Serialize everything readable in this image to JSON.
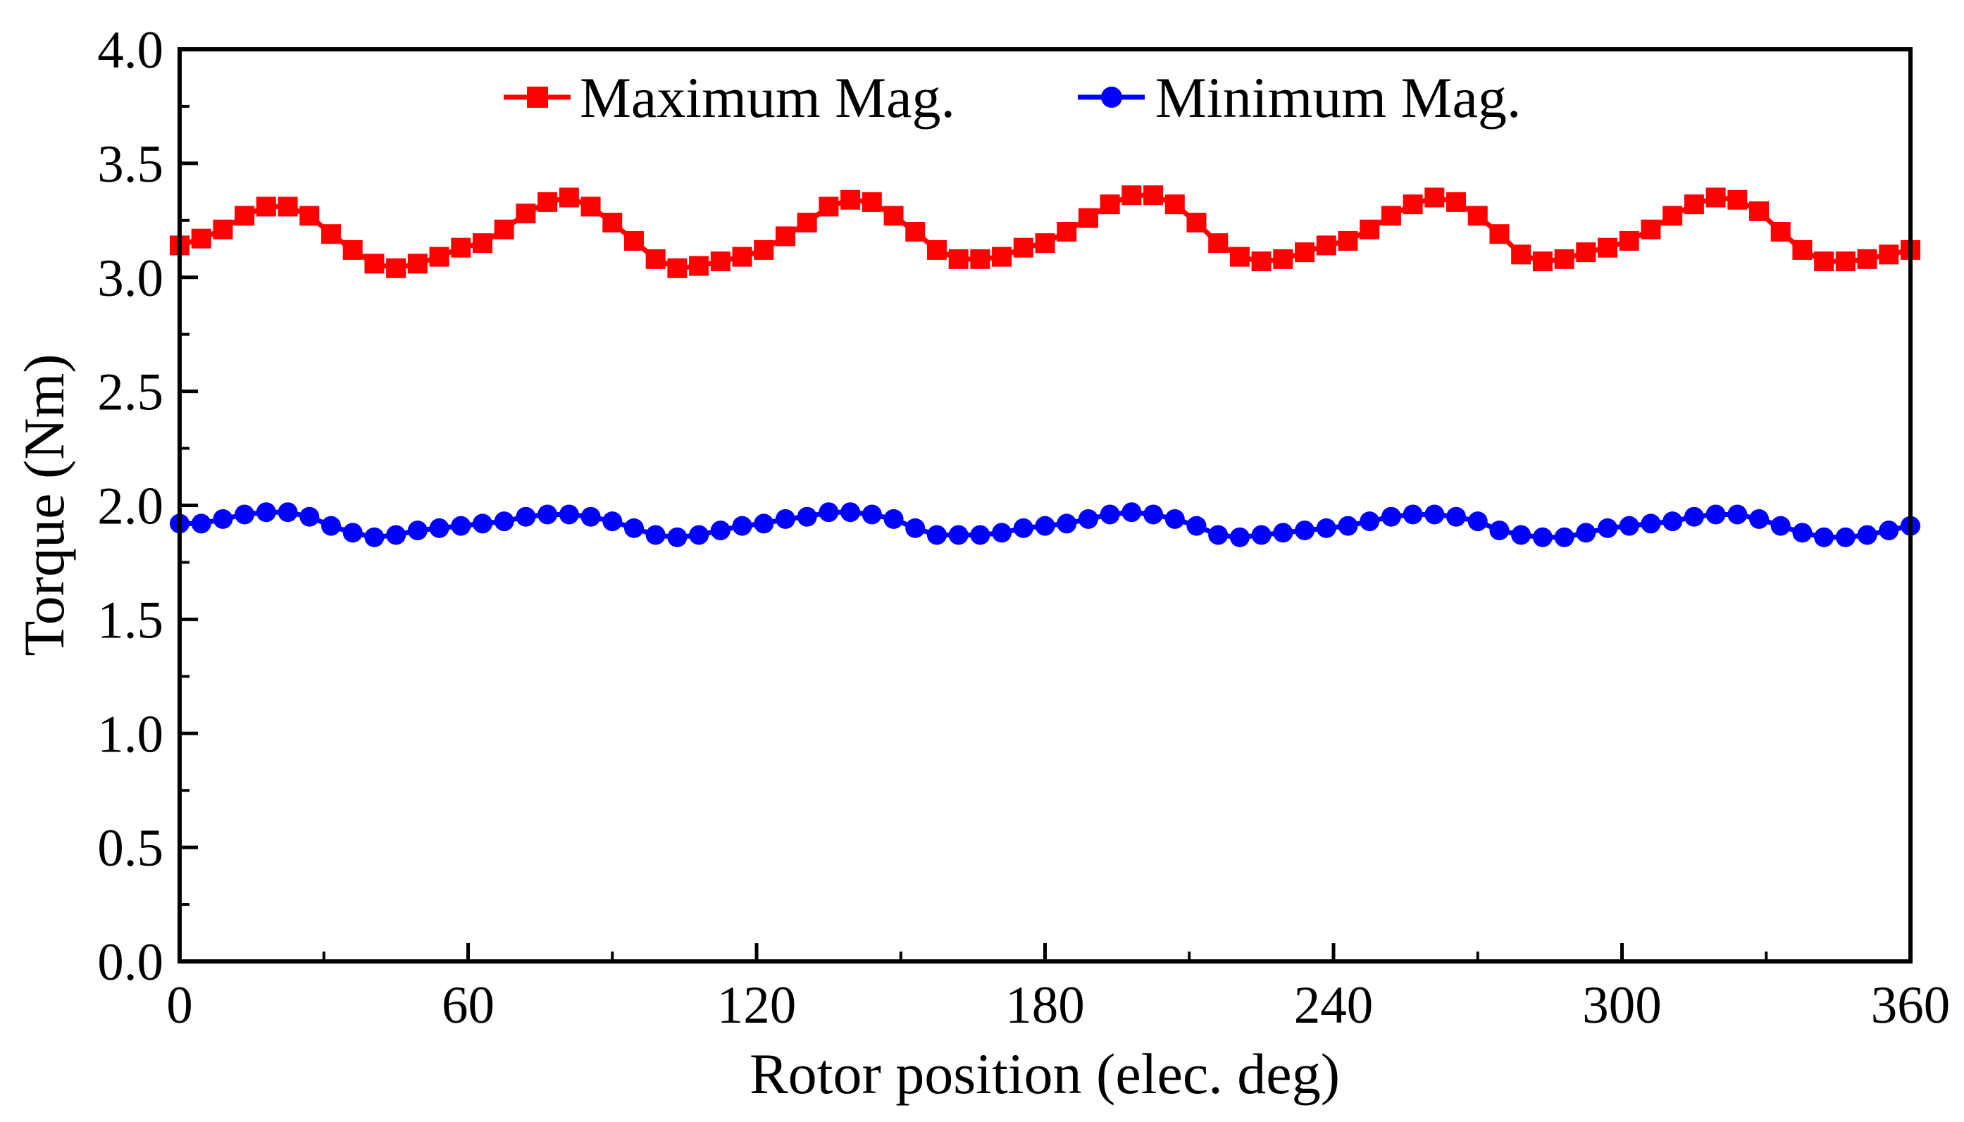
{
  "chart_data": {
    "type": "line",
    "title": "",
    "xlabel": "Rotor position (elec. deg)",
    "ylabel": "Torque (Nm)",
    "xlim": [
      0,
      360
    ],
    "ylim": [
      0.0,
      4.0
    ],
    "x_ticks": [
      "0",
      "60",
      "120",
      "180",
      "240",
      "300",
      "360"
    ],
    "y_ticks": [
      "0.0",
      "0.5",
      "1.0",
      "1.5",
      "2.0",
      "2.5",
      "3.0",
      "3.5",
      "4.0"
    ],
    "grid": false,
    "legend_position": "top",
    "x": [
      0,
      4.5,
      9,
      13.5,
      18,
      22.5,
      27,
      31.5,
      36,
      40.5,
      45,
      49.5,
      54,
      58.5,
      63,
      67.5,
      72,
      76.5,
      81,
      85.5,
      90,
      94.5,
      99,
      103.5,
      108,
      112.5,
      117,
      121.5,
      126,
      130.5,
      135,
      139.5,
      144,
      148.5,
      153,
      157.5,
      162,
      166.5,
      171,
      175.5,
      180,
      184.5,
      189,
      193.5,
      198,
      202.5,
      207,
      211.5,
      216,
      220.5,
      225,
      229.5,
      234,
      238.5,
      243,
      247.5,
      252,
      256.5,
      261,
      265.5,
      270,
      274.5,
      279,
      283.5,
      288,
      292.5,
      297,
      301.5,
      306,
      310.5,
      315,
      319.5,
      324,
      328.5,
      333,
      337.5,
      342,
      346.5,
      351,
      355.5,
      360
    ],
    "series": [
      {
        "name": "Maximum Mag.",
        "color": "#ff0000",
        "marker": "square",
        "values": [
          3.14,
          3.17,
          3.21,
          3.27,
          3.31,
          3.31,
          3.27,
          3.19,
          3.12,
          3.06,
          3.04,
          3.06,
          3.09,
          3.13,
          3.15,
          3.21,
          3.28,
          3.33,
          3.35,
          3.31,
          3.24,
          3.16,
          3.08,
          3.04,
          3.05,
          3.07,
          3.09,
          3.12,
          3.18,
          3.24,
          3.31,
          3.34,
          3.33,
          3.27,
          3.2,
          3.12,
          3.08,
          3.08,
          3.09,
          3.13,
          3.15,
          3.2,
          3.26,
          3.32,
          3.36,
          3.36,
          3.32,
          3.24,
          3.15,
          3.09,
          3.07,
          3.08,
          3.11,
          3.14,
          3.16,
          3.21,
          3.27,
          3.32,
          3.35,
          3.33,
          3.27,
          3.19,
          3.1,
          3.07,
          3.08,
          3.11,
          3.13,
          3.16,
          3.21,
          3.27,
          3.32,
          3.35,
          3.34,
          3.29,
          3.2,
          3.12,
          3.07,
          3.07,
          3.08,
          3.1,
          3.12
        ]
      },
      {
        "name": "Minimum Mag.",
        "color": "#0000ff",
        "marker": "circle",
        "values": [
          1.92,
          1.92,
          1.94,
          1.96,
          1.97,
          1.97,
          1.95,
          1.91,
          1.88,
          1.86,
          1.87,
          1.89,
          1.9,
          1.91,
          1.92,
          1.93,
          1.95,
          1.96,
          1.96,
          1.95,
          1.93,
          1.9,
          1.87,
          1.86,
          1.87,
          1.89,
          1.91,
          1.92,
          1.94,
          1.95,
          1.97,
          1.97,
          1.96,
          1.94,
          1.9,
          1.87,
          1.87,
          1.87,
          1.88,
          1.9,
          1.91,
          1.92,
          1.94,
          1.96,
          1.97,
          1.96,
          1.94,
          1.91,
          1.87,
          1.86,
          1.87,
          1.88,
          1.89,
          1.9,
          1.91,
          1.93,
          1.95,
          1.96,
          1.96,
          1.95,
          1.93,
          1.89,
          1.87,
          1.86,
          1.86,
          1.88,
          1.9,
          1.91,
          1.92,
          1.93,
          1.95,
          1.96,
          1.96,
          1.94,
          1.91,
          1.88,
          1.86,
          1.86,
          1.87,
          1.89,
          1.91
        ]
      }
    ]
  }
}
